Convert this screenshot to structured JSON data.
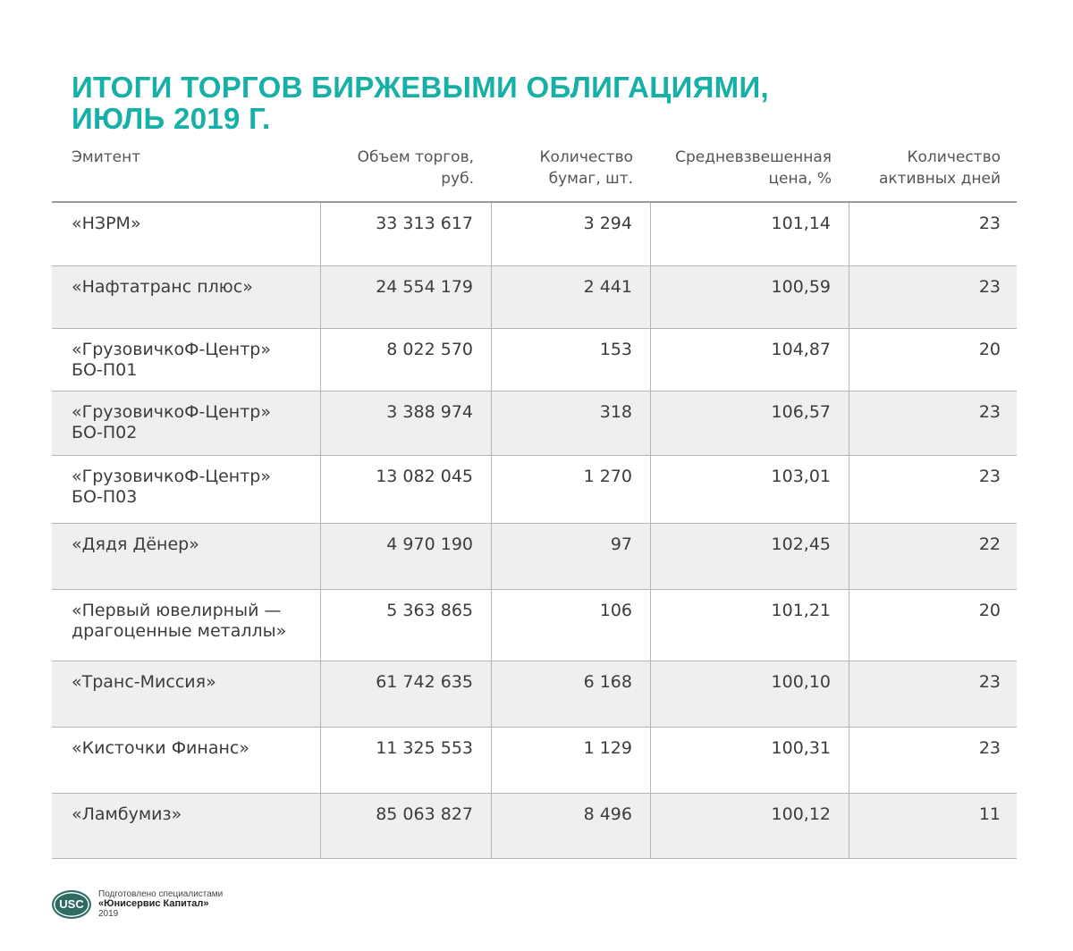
{
  "title": {
    "line1": "ИТОГИ ТОРГОВ БИРЖЕВЫМИ ОБЛИГАЦИЯМИ,",
    "line2": "ИЮЛЬ 2019 Г."
  },
  "headers": [
    {
      "line1": "Эмитент",
      "line2": ""
    },
    {
      "line1": "Объем торгов,",
      "line2": "руб."
    },
    {
      "line1": "Количество",
      "line2": "бумаг, шт."
    },
    {
      "line1": "Средневзвешенная",
      "line2": "цена, %"
    },
    {
      "line1": "Количество",
      "line2": "активных дней"
    }
  ],
  "rows": [
    {
      "issuer1": "«НЗРМ»",
      "issuer2": "",
      "volume": "33 313 617",
      "count": "3 294",
      "price": "101,14",
      "days": "23"
    },
    {
      "issuer1": "«Нафтатранс плюс»",
      "issuer2": "",
      "volume": "24 554 179",
      "count": "2 441",
      "price": "100,59",
      "days": "23"
    },
    {
      "issuer1": "«ГрузовичкоФ-Центр»",
      "issuer2": "БО-П01",
      "volume": "8 022 570",
      "count": "153",
      "price": "104,87",
      "days": "20"
    },
    {
      "issuer1": "«ГрузовичкоФ-Центр»",
      "issuer2": "БО-П02",
      "volume": "3 388 974",
      "count": "318",
      "price": "106,57",
      "days": "23"
    },
    {
      "issuer1": "«ГрузовичкоФ-Центр»",
      "issuer2": "БО-П03",
      "volume": "13 082 045",
      "count": "1 270",
      "price": "103,01",
      "days": "23"
    },
    {
      "issuer1": "«Дядя Дёнер»",
      "issuer2": "",
      "volume": "4 970 190",
      "count": "97",
      "price": "102,45",
      "days": "22"
    },
    {
      "issuer1": "«Первый ювелирный —",
      "issuer2": "драгоценные металлы»",
      "volume": "5 363 865",
      "count": "106",
      "price": "101,21",
      "days": "20"
    },
    {
      "issuer1": "«Транс-Миссия»",
      "issuer2": "",
      "volume": "61 742 635",
      "count": "6 168",
      "price": "100,10",
      "days": "23"
    },
    {
      "issuer1": "«Кисточки Финанс»",
      "issuer2": "",
      "volume": "11 325 553",
      "count": "1 129",
      "price": "100,31",
      "days": "23"
    },
    {
      "issuer1": "«Ламбумиз»",
      "issuer2": "",
      "volume": "85 063 827",
      "count": "8 496",
      "price": "100,12",
      "days": "11"
    }
  ],
  "footer": {
    "logo": "USC",
    "line1": "Подготовлено специалистами",
    "line2": "«Юнисервис Капитал»",
    "line3": "2019"
  },
  "colors": {
    "title": "#17b0a7",
    "alt_row": "#eef0ef",
    "logo": "#2f6b62"
  }
}
